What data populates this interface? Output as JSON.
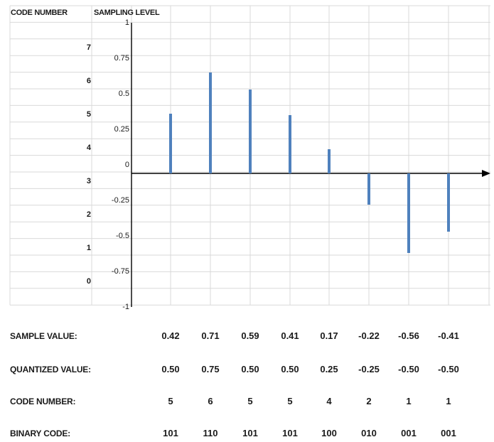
{
  "headers": {
    "code_number": "CODE NUMBER",
    "sampling_level": "SAMPLING LEVEL"
  },
  "code_levels": [
    "7",
    "6",
    "5",
    "4",
    "3",
    "2",
    "1",
    "0"
  ],
  "chart_data": {
    "type": "bar",
    "orientation": "vertical stems",
    "y_ticks": [
      "1",
      "0.75",
      "0.5",
      "0.25",
      "0",
      "-0.25",
      "-0.5",
      "-0.75",
      "-1"
    ],
    "ylim": [
      -1,
      1
    ],
    "values": [
      0.42,
      0.71,
      0.59,
      0.41,
      0.17,
      -0.22,
      -0.56,
      -0.41
    ],
    "color": "#4f81bd",
    "axis_color": "#000000",
    "grid": true
  },
  "table": {
    "rows": [
      {
        "label": "SAMPLE VALUE:",
        "values": [
          "0.42",
          "0.71",
          "0.59",
          "0.41",
          "0.17",
          "-0.22",
          "-0.56",
          "-0.41"
        ]
      },
      {
        "label": "QUANTIZED VALUE:",
        "values": [
          "0.50",
          "0.75",
          "0.50",
          "0.50",
          "0.25",
          "-0.25",
          "-0.50",
          "-0.50"
        ]
      },
      {
        "label": "CODE NUMBER:",
        "values": [
          "5",
          "6",
          "5",
          "5",
          "4",
          "2",
          "1",
          "1"
        ]
      },
      {
        "label": "BINARY CODE:",
        "values": [
          "101",
          "110",
          "101",
          "101",
          "100",
          "010",
          "001",
          "001"
        ]
      }
    ]
  }
}
